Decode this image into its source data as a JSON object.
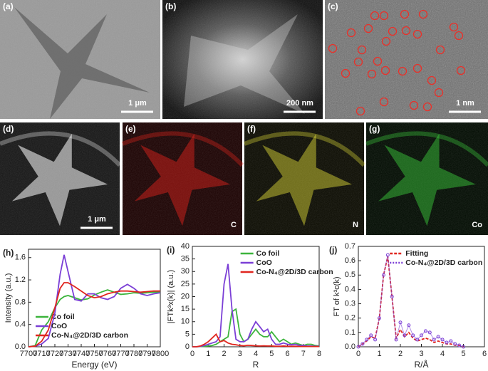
{
  "panels": [
    {
      "label": "(a)",
      "scale_bar": "1 μm"
    },
    {
      "label": "(b)",
      "scale_bar": "200 nm"
    },
    {
      "label": "(c)",
      "scale_bar": "1 nm"
    },
    {
      "label": "(d)",
      "scale_bar": "1 μm"
    },
    {
      "label": "(e)",
      "element": "C"
    },
    {
      "label": "(f)",
      "element": "N"
    },
    {
      "label": "(g)",
      "element": "Co"
    }
  ],
  "chart_data": [
    {
      "type": "line",
      "panel_label": "(h)",
      "x_label": "Energy (eV)",
      "y_label": "Intensity (a.u.)",
      "x": [
        7700,
        7705,
        7710,
        7715,
        7720,
        7724,
        7727,
        7730,
        7735,
        7740,
        7745,
        7750,
        7755,
        7760,
        7765,
        7770,
        7775,
        7780,
        7785,
        7790,
        7795,
        7800
      ],
      "series": [
        {
          "name": "Co foil",
          "color": "#3cb43c",
          "values": [
            0,
            0.02,
            0.3,
            0.45,
            0.7,
            0.85,
            0.9,
            0.92,
            0.88,
            0.84,
            0.86,
            0.93,
            0.98,
            1.02,
            0.98,
            0.94,
            0.95,
            0.97,
            0.96,
            0.97,
            0.98,
            0.98
          ]
        },
        {
          "name": "CoO",
          "color": "#7b3fd6",
          "values": [
            0,
            0.01,
            0.05,
            0.15,
            0.6,
            1.3,
            1.65,
            1.35,
            0.85,
            0.82,
            0.95,
            0.95,
            0.88,
            0.85,
            0.9,
            1.05,
            1.12,
            1.05,
            0.95,
            0.92,
            0.95,
            0.97
          ]
        },
        {
          "name": "Co-N₄@2D/3D carbon",
          "color": "#e0261f",
          "values": [
            0,
            0.01,
            0.1,
            0.3,
            0.7,
            1.05,
            1.15,
            1.15,
            1.08,
            1.0,
            0.92,
            0.88,
            0.9,
            0.95,
            0.98,
            1.0,
            1.0,
            0.99,
            0.98,
            0.99,
            1.0,
            1.0
          ]
        }
      ],
      "xlim": [
        7700,
        7800
      ],
      "xticks": [
        7700,
        7710,
        7720,
        7730,
        7740,
        7750,
        7760,
        7770,
        7780,
        7790,
        7800
      ],
      "ylim": [
        0,
        1.75
      ],
      "yticks": [
        {
          "value": 0,
          "label": "0.0"
        },
        0.4,
        0.8,
        1.2,
        1.6
      ],
      "legend": "lower right"
    },
    {
      "type": "line",
      "panel_label": "(i)",
      "x_label": "R",
      "y_label": "|FTk³x(k)| (a.u.)",
      "x": [
        0,
        0.25,
        0.5,
        0.75,
        1,
        1.25,
        1.5,
        1.75,
        2,
        2.25,
        2.5,
        2.75,
        3,
        3.25,
        3.5,
        3.75,
        4,
        4.25,
        4.5,
        4.75,
        5,
        5.25,
        5.5,
        5.75,
        6,
        6.25,
        6.5,
        6.75,
        7,
        7.25,
        7.5,
        7.75,
        8
      ],
      "series": [
        {
          "name": "Co foil",
          "color": "#3cb43c",
          "values": [
            0,
            0,
            0.1,
            0.2,
            0.3,
            0.5,
            1,
            2,
            3,
            4,
            14,
            15,
            5,
            2,
            3,
            5,
            7,
            5,
            4,
            4,
            6,
            4,
            2,
            3,
            2,
            1,
            1.5,
            1,
            0.5,
            1,
            1,
            0.5,
            0.3
          ]
        },
        {
          "name": "CoO",
          "color": "#7b3fd6",
          "values": [
            0,
            0,
            0.2,
            0.5,
            1,
            1.5,
            2,
            4,
            25,
            33,
            15,
            3,
            2,
            2,
            3,
            7,
            10,
            8,
            6,
            7,
            3,
            1,
            1,
            1.5,
            1,
            0.8,
            1,
            0.5,
            0.5,
            0.3,
            0.3,
            0.2,
            0.2
          ]
        },
        {
          "name": "Co-N₄@2D/3D carbon",
          "color": "#e0261f",
          "values": [
            0,
            0,
            0.3,
            1,
            2,
            3.5,
            5,
            2,
            2.5,
            1.5,
            1,
            0.8,
            0.5,
            0.4,
            0.6,
            0.5,
            0.4,
            0.3,
            0.4,
            0.3,
            0.3,
            0.2,
            0.2,
            0.3,
            0.2,
            0.2,
            0.2,
            0.1,
            0.1,
            0.1,
            0.1,
            0.1,
            0.1
          ]
        }
      ],
      "xlim": [
        0,
        8
      ],
      "xticks": [
        0,
        1,
        2,
        3,
        4,
        5,
        6,
        7,
        8
      ],
      "ylim": [
        0,
        40
      ],
      "yticks": [
        0,
        5,
        10,
        15,
        20,
        25,
        30,
        35,
        40
      ],
      "legend": "upper right"
    },
    {
      "type": "line",
      "panel_label": "(j)",
      "x_label": "R/Å",
      "y_label": "FT of k³c(k)",
      "x": [
        0,
        0.2,
        0.4,
        0.6,
        0.8,
        1.0,
        1.2,
        1.4,
        1.6,
        1.8,
        2.0,
        2.2,
        2.4,
        2.6,
        2.8,
        3.0,
        3.2,
        3.4,
        3.6,
        3.8,
        4.0,
        4.2,
        4.4,
        4.6,
        4.8,
        5.0
      ],
      "series": [
        {
          "name": "Fitting",
          "color": "#e0261f",
          "dashed": true,
          "values": [
            0,
            0.02,
            0.04,
            0.07,
            0.06,
            0.2,
            0.5,
            0.63,
            0.35,
            0.06,
            0.12,
            0.07,
            0.1,
            0.06,
            0.04,
            0.05,
            0.06,
            0.05,
            0.03,
            0.04,
            0.03,
            0.02,
            0.02,
            0.01,
            0.01,
            0
          ]
        },
        {
          "name": "Co-N₄@2D/3D carbon",
          "color": "#7b3fd6",
          "markers": true,
          "values": [
            0,
            0.02,
            0.05,
            0.08,
            0.05,
            0.2,
            0.5,
            0.64,
            0.35,
            0.05,
            0.17,
            0.08,
            0.15,
            0.08,
            0.05,
            0.08,
            0.11,
            0.1,
            0.05,
            0.07,
            0.05,
            0.03,
            0.04,
            0.02,
            0.01,
            0
          ]
        }
      ],
      "xlim": [
        0,
        6
      ],
      "xticks": [
        0,
        1,
        2,
        3,
        4,
        5,
        6
      ],
      "ylim": [
        0,
        0.7
      ],
      "yticks": [
        {
          "value": 0,
          "label": "0.0"
        },
        0.1,
        0.2,
        0.3,
        0.4,
        0.5,
        0.6,
        0.7
      ],
      "legend": "upper right"
    }
  ]
}
